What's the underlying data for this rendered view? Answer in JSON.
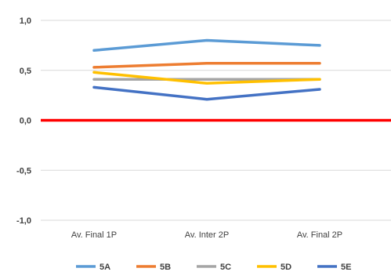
{
  "chart_data": {
    "type": "line",
    "categories": [
      "Av. Final 1P",
      "Av. Inter 2P",
      "Av. Final 2P"
    ],
    "ylim": [
      -1.0,
      1.0
    ],
    "yticks": [
      "1,0",
      "0,5",
      "0,0",
      "-0,5",
      "-1,0"
    ],
    "ytick_values": [
      1.0,
      0.5,
      0.0,
      -0.5,
      -1.0
    ],
    "grid": true,
    "legend_position": "bottom",
    "series": [
      {
        "name": "5A",
        "values": [
          0.7,
          0.8,
          0.75
        ],
        "color": "#5B9BD5"
      },
      {
        "name": "5B",
        "values": [
          0.53,
          0.57,
          0.57
        ],
        "color": "#ED7D31"
      },
      {
        "name": "5C",
        "values": [
          0.41,
          0.41,
          0.41
        ],
        "color": "#A5A5A5"
      },
      {
        "name": "5D",
        "values": [
          0.48,
          0.37,
          0.41
        ],
        "color": "#FFC000"
      },
      {
        "name": "5E",
        "values": [
          0.33,
          0.21,
          0.31
        ],
        "color": "#4472C4"
      }
    ],
    "reference_line": {
      "value": 0.0,
      "color": "#FF0000"
    }
  }
}
